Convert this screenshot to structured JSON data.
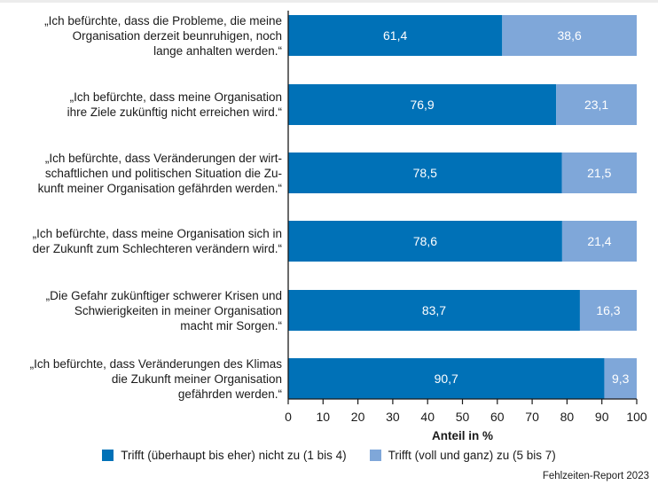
{
  "chart_data": {
    "type": "bar",
    "orientation": "horizontal",
    "stacked": true,
    "categories": [
      [
        "„Ich befürchte, dass die Probleme, die meine",
        "Organisation derzeit beunruhigen, noch",
        "lange anhalten werden.“"
      ],
      [
        "„Ich befürchte, dass meine Organisation",
        "ihre Ziele zukünftig nicht erreichen wird.“"
      ],
      [
        "„Ich befürchte, dass Veränderungen der wirt-",
        "schaftlichen und politischen Situation die Zu-",
        "kunft meiner Organisation gefährden werden.“"
      ],
      [
        "„Ich befürchte, dass meine Organisation sich in",
        "der Zukunft zum Schlechteren verändern wird.“"
      ],
      [
        "„Die Gefahr zukünftiger schwerer Krisen und",
        "Schwierigkeiten in meiner Organisation",
        "macht mir Sorgen.“"
      ],
      [
        "„Ich befürchte, dass Veränderungen des Klimas",
        "die Zukunft meiner Organisation",
        "gefährden werden.“"
      ]
    ],
    "series": [
      {
        "name": "Trifft (überhaupt bis eher) nicht zu (1 bis 4)",
        "color": "#0071b7",
        "values": [
          61.4,
          76.9,
          78.5,
          78.6,
          83.7,
          90.7
        ],
        "labels": [
          "61,4",
          "76,9",
          "78,5",
          "78,6",
          "83,7",
          "90,7"
        ]
      },
      {
        "name": "Trifft (voll und ganz) zu (5 bis 7)",
        "color": "#7fa7d9",
        "values": [
          38.6,
          23.1,
          21.5,
          21.4,
          16.3,
          9.3
        ],
        "labels": [
          "38,6",
          "23,1",
          "21,5",
          "21,4",
          "16,3",
          "9,3"
        ]
      }
    ],
    "xlabel": "Anteil in %",
    "xlim": [
      0,
      100
    ],
    "xticks": [
      "0",
      "10",
      "20",
      "30",
      "40",
      "50",
      "60",
      "70",
      "80",
      "90",
      "100"
    ],
    "legend": "bottom"
  },
  "source": "Fehlzeiten-Report 2023"
}
